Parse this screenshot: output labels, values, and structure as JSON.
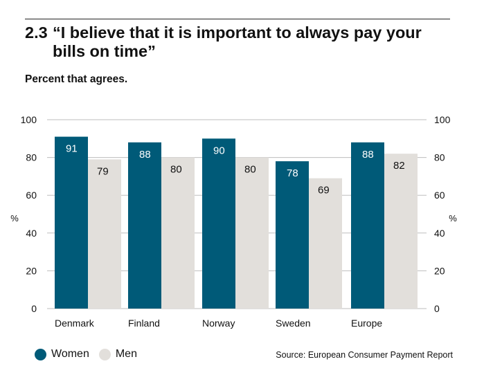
{
  "title": {
    "number": "2.3",
    "line1": "“I believe that it is important to always pay your",
    "line2": "bills on time”"
  },
  "subtitle": "Percent that agrees.",
  "source": "Source: European Consumer Payment Report",
  "colors": {
    "women": "#005a78",
    "men": "#e2dfdb",
    "grid": "#bdbdbd"
  },
  "chart_data": {
    "type": "bar",
    "categories": [
      "Denmark",
      "Finland",
      "Norway",
      "Sweden",
      "Europe"
    ],
    "series": [
      {
        "name": "Women",
        "values": [
          91,
          88,
          90,
          78,
          88
        ]
      },
      {
        "name": "Men",
        "values": [
          79,
          80,
          80,
          69,
          82
        ]
      }
    ],
    "ylim": [
      0,
      100
    ],
    "yticks": [
      0,
      20,
      40,
      60,
      80,
      100
    ],
    "ylabel": "%",
    "ylabel_right": "%",
    "grid": true,
    "legend_position": "bottom-left"
  }
}
